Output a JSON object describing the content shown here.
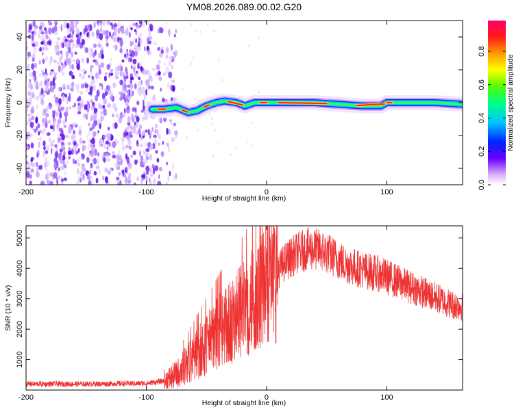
{
  "title": "YM08.2026.089.00.02.G20",
  "chart_data": [
    {
      "type": "heatmap",
      "xlabel": "Height of straight line (km)",
      "ylabel": "Frequency (Hz)",
      "xlim": [
        -200,
        163
      ],
      "ylim": [
        -50,
        50
      ],
      "xticks": [
        -200,
        -100,
        0,
        100
      ],
      "yticks": [
        -40,
        -20,
        0,
        20,
        40
      ],
      "noise_region_x": [
        -200,
        -85
      ],
      "signal_track": [
        {
          "x": -95,
          "y": -4
        },
        {
          "x": -85,
          "y": -4
        },
        {
          "x": -75,
          "y": -3
        },
        {
          "x": -65,
          "y": -6
        },
        {
          "x": -58,
          "y": -5
        },
        {
          "x": -50,
          "y": -2
        },
        {
          "x": -42,
          "y": 0
        },
        {
          "x": -35,
          "y": 1
        },
        {
          "x": -25,
          "y": 0
        },
        {
          "x": -18,
          "y": -2
        },
        {
          "x": -10,
          "y": 0
        },
        {
          "x": 0,
          "y": 0
        },
        {
          "x": 20,
          "y": 0
        },
        {
          "x": 40,
          "y": 0
        },
        {
          "x": 60,
          "y": -1
        },
        {
          "x": 80,
          "y": -2
        },
        {
          "x": 95,
          "y": -2
        },
        {
          "x": 100,
          "y": 0
        },
        {
          "x": 120,
          "y": 0
        },
        {
          "x": 140,
          "y": 0
        },
        {
          "x": 163,
          "y": -1
        }
      ],
      "colorbar": {
        "label": "Normalized spectral amplitude",
        "ticks": [
          0.0,
          0.2,
          0.4,
          0.6,
          0.8
        ],
        "tick_labels": [
          "0.0",
          "0.2",
          "0.4",
          "0.6",
          "0.8"
        ],
        "colors": [
          "#ffffff",
          "#cc99ff",
          "#5500ff",
          "#0044ff",
          "#00ccff",
          "#00ff66",
          "#66ff00",
          "#ffff00",
          "#ff9900",
          "#ff0000",
          "#ff0066"
        ]
      }
    },
    {
      "type": "line",
      "xlabel": "Height of straight line (km)",
      "ylabel": "SNR (10 * v/v)",
      "xlim": [
        -200,
        163
      ],
      "ylim": [
        0,
        5400
      ],
      "xticks": [
        -200,
        -100,
        0,
        100
      ],
      "yticks": [
        1000,
        2000,
        3000,
        4000,
        5000
      ],
      "series": [
        {
          "name": "SNR",
          "color": "#ee3333",
          "envelope": [
            {
              "x": -200,
              "y": 200
            },
            {
              "x": -150,
              "y": 200
            },
            {
              "x": -100,
              "y": 220
            },
            {
              "x": -85,
              "y": 300
            },
            {
              "x": -75,
              "y": 500
            },
            {
              "x": -65,
              "y": 900
            },
            {
              "x": -55,
              "y": 1300
            },
            {
              "x": -45,
              "y": 1700
            },
            {
              "x": -35,
              "y": 2100
            },
            {
              "x": -25,
              "y": 2400
            },
            {
              "x": -15,
              "y": 2800
            },
            {
              "x": -5,
              "y": 3200
            },
            {
              "x": 5,
              "y": 3700
            },
            {
              "x": 15,
              "y": 4200
            },
            {
              "x": 25,
              "y": 4500
            },
            {
              "x": 35,
              "y": 4650
            },
            {
              "x": 45,
              "y": 4600
            },
            {
              "x": 55,
              "y": 4400
            },
            {
              "x": 65,
              "y": 4150
            },
            {
              "x": 80,
              "y": 3950
            },
            {
              "x": 95,
              "y": 3800
            },
            {
              "x": 110,
              "y": 3550
            },
            {
              "x": 125,
              "y": 3300
            },
            {
              "x": 140,
              "y": 3050
            },
            {
              "x": 155,
              "y": 2800
            },
            {
              "x": 163,
              "y": 2750
            }
          ]
        }
      ]
    }
  ]
}
